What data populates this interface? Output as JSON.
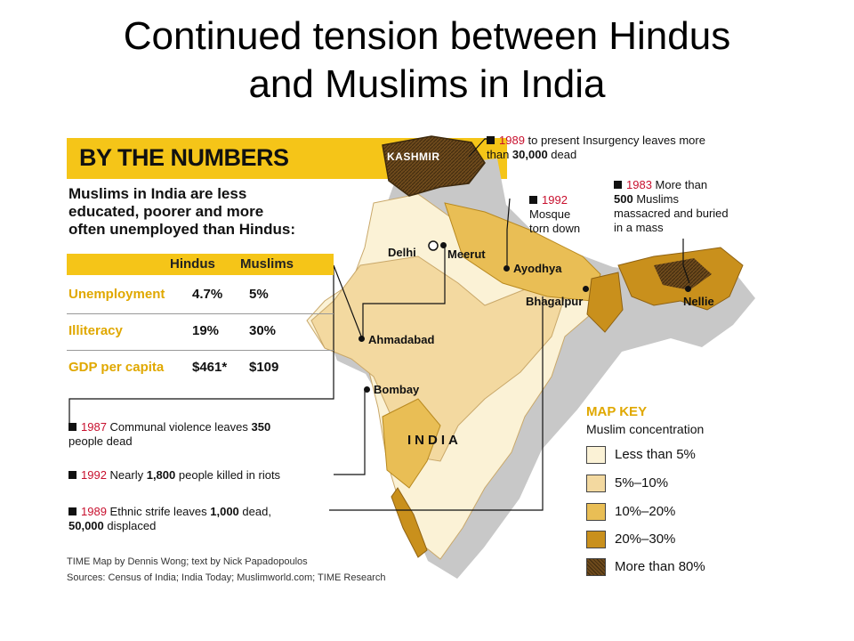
{
  "title": {
    "line1": "Continued tension between Hindus",
    "line2": "and Muslims in India"
  },
  "infographic": {
    "banner": "BY THE NUMBERS",
    "headline": [
      "Muslims in India are less",
      "educated, poorer and more",
      "often unemployed than Hindus:"
    ],
    "table": {
      "columns": [
        "Hindus",
        "Muslims"
      ],
      "rows": [
        {
          "label": "Unemployment",
          "hindus": "4.7%",
          "muslims": "5%"
        },
        {
          "label": "Illiteracy",
          "hindus": "19%",
          "muslims": "30%"
        },
        {
          "label": "GDP per capita",
          "hindus": "$461*",
          "muslims": "$109"
        }
      ]
    },
    "annotations": {
      "kashmir": {
        "year": "1989",
        "text1": " to present Insurgency leaves more",
        "text2a": "than ",
        "text2b": "30,000",
        "text2c": " dead"
      },
      "nellie": {
        "year": "1983",
        "text1": " More than",
        "line2b": "500",
        "line2c": " Muslims",
        "line3": "massacred and buried",
        "line4": "in a mass"
      },
      "ayodhya": {
        "year": "1992",
        "line2": "Mosque",
        "line3": "torn down"
      },
      "ahmadabad": {
        "year": "1987",
        "text1a": " Communal violence leaves ",
        "text1b": "350",
        "line2": "people dead"
      },
      "bombay": {
        "year": "1992",
        "text1a": " Nearly ",
        "text1b": "1,800",
        "text1c": " people killed in riots"
      },
      "bhagalpur": {
        "year": "1989",
        "text1a": " Ethnic strife leaves ",
        "text1b": "1,000",
        "text1c": " dead,",
        "line2b": "50,000",
        "line2c": " displaced"
      }
    },
    "cities": {
      "kashmir": "KASHMIR",
      "delhi": "Delhi",
      "meerut": "Meerut",
      "ayodhya": "Ayodhya",
      "bhagalpur": "Bhagalpur",
      "nellie": "Nellie",
      "ahmadabad": "Ahmadabad",
      "bombay": "Bombay",
      "india": "INDIA"
    },
    "map_key": {
      "title": "MAP KEY",
      "subtitle": "Muslim concentration",
      "items": [
        {
          "label": "Less than 5%",
          "color": "#fbf2d6"
        },
        {
          "label": "5%–10%",
          "color": "#f3d9a0"
        },
        {
          "label": "10%–20%",
          "color": "#e9be55"
        },
        {
          "label": "20%–30%",
          "color": "#c9901c"
        },
        {
          "label": "More than 80%",
          "color": "#6e4a1c"
        }
      ]
    },
    "credits": {
      "line1": "TIME Map by Dennis Wong; text by Nick Papadopoulos",
      "line2": "Sources: Census of India; India Today; Muslimworld.com; TIME Research"
    }
  }
}
